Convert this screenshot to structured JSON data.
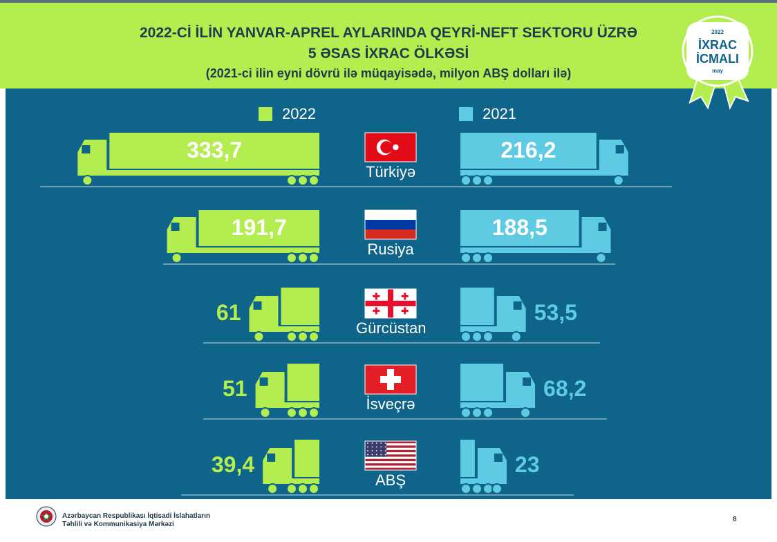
{
  "title": {
    "line1": "2022-Cİ İLİN YANVAR-APREL AYLARINDA QEYRİ-NEFT SEKTORU ÜZRƏ",
    "line2": "5 ƏSAS İXRAC ÖLKƏSİ",
    "line3": "(2021-ci ilin eyni dövrü ilə müqayisədə, milyon ABŞ dolları ilə)"
  },
  "badge": {
    "year": "2022",
    "line1": "İXRAC",
    "line2": "İCMALI",
    "month": "may"
  },
  "colors": {
    "y2022": "#b4ed4f",
    "y2021": "#5ecbe3",
    "background": "#0f6489",
    "header": "#b4ed4f",
    "title_text": "#233a4a"
  },
  "chart_data": {
    "type": "bar",
    "title": "2022-Cİ İLİN YANVAR-APREL AYLARINDA QEYRİ-NEFT SEKTORU ÜZRƏ 5 ƏSAS İXRAC ÖLKƏSİ",
    "subtitle": "(2021-ci ilin eyni dövrü ilə müqayisədə, milyon ABŞ dolları ilə)",
    "categories": [
      "Türkiyə",
      "Rusiya",
      "Gürcüstan",
      "İsveçrə",
      "ABŞ"
    ],
    "flags": [
      "turkey-flag",
      "russia-flag",
      "georgia-flag",
      "switzerland-flag",
      "usa-flag"
    ],
    "series": [
      {
        "name": "2022",
        "values": [
          333.7,
          191.7,
          61,
          51,
          39.4
        ],
        "labels": [
          "333,7",
          "191,7",
          "61",
          "51",
          "39,4"
        ]
      },
      {
        "name": "2021",
        "values": [
          216.2,
          188.5,
          53.5,
          68.2,
          23
        ],
        "labels": [
          "216,2",
          "188,5",
          "53,5",
          "68,2",
          "23"
        ]
      }
    ],
    "legend": "top-center"
  },
  "footer": {
    "org_line1": "Azərbaycan Respublikası İqtisadi İslahatların",
    "org_line2": "Təhlili və Kommunikasiya Mərkəzi",
    "page_number": "8"
  }
}
